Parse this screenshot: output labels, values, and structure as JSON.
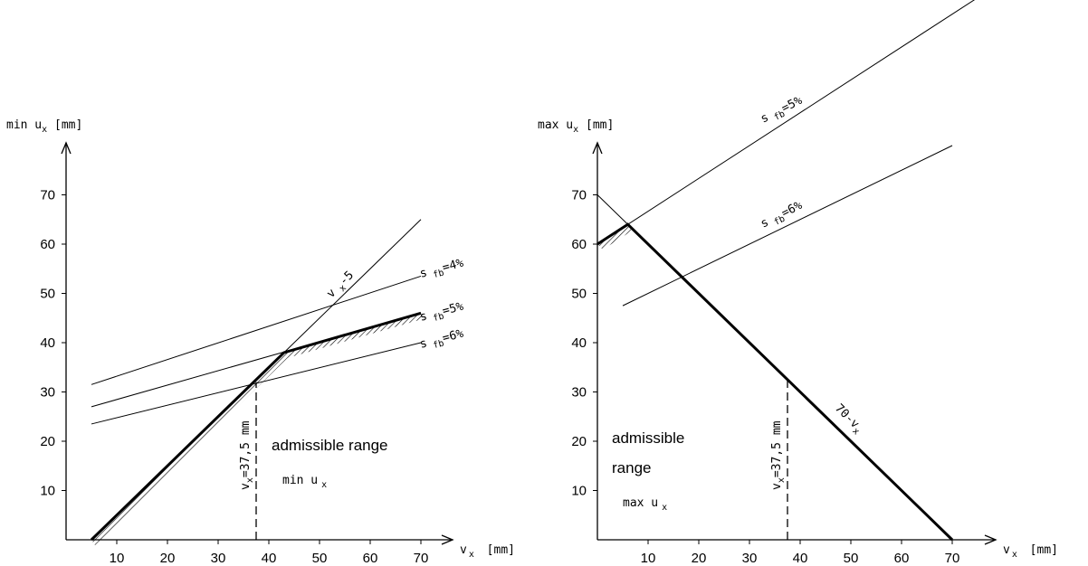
{
  "chart_data": [
    {
      "type": "line",
      "ylabel_main": "min u",
      "ylabel_sub": "x",
      "ylabel_unit": "[mm]",
      "xlabel_main": "v",
      "xlabel_sub": "x",
      "xlabel_unit": "[mm]",
      "xlim": [
        0,
        75
      ],
      "ylim": [
        0,
        80
      ],
      "x_ticks": [
        10,
        20,
        30,
        40,
        50,
        60,
        70
      ],
      "y_ticks": [
        10,
        20,
        30,
        40,
        50,
        60,
        70
      ],
      "series": [
        {
          "label_main": "s",
          "label_sub": "fb",
          "label_eq": "=4%",
          "points": [
            [
              5,
              31.5
            ],
            [
              70,
              53.5
            ]
          ]
        },
        {
          "label_main": "s",
          "label_sub": "fb",
          "label_eq": "=5%",
          "points": [
            [
              5,
              27
            ],
            [
              70,
              46
            ]
          ]
        },
        {
          "label_main": "s",
          "label_sub": "fb",
          "label_eq": "=6%",
          "points": [
            [
              5,
              23.5
            ],
            [
              70,
              40
            ]
          ]
        },
        {
          "label_main": "v",
          "label_sub": "x",
          "label_eq": "-5",
          "points": [
            [
              5,
              0
            ],
            [
              70,
              65
            ]
          ]
        }
      ],
      "boundary": [
        [
          5,
          0
        ],
        [
          43,
          38
        ],
        [
          70,
          46
        ]
      ],
      "reference_line": {
        "label_main": "v",
        "label_sub": "x",
        "label_eq": "=37,5 mm",
        "x": 37.5,
        "y_top": 32
      },
      "range_text": "admissible range",
      "range_var_main": "min u",
      "range_var_sub": "x"
    },
    {
      "type": "line",
      "ylabel_main": "max u",
      "ylabel_sub": "x",
      "ylabel_unit": "[mm]",
      "xlabel_main": "v",
      "xlabel_sub": "x",
      "xlabel_unit": "[mm]",
      "xlim": [
        0,
        75
      ],
      "ylim": [
        0,
        80
      ],
      "x_ticks": [
        10,
        20,
        30,
        40,
        50,
        60,
        70
      ],
      "y_ticks": [
        10,
        20,
        30,
        40,
        50,
        60,
        70
      ],
      "series": [
        {
          "label_main": "s",
          "label_sub": "fb",
          "label_eq": "=5%",
          "points": [
            [
              0,
              60
            ],
            [
              75,
              110
            ]
          ]
        },
        {
          "label_main": "s",
          "label_sub": "fb",
          "label_eq": "=6%",
          "points": [
            [
              5,
              47.5
            ],
            [
              70,
              80
            ]
          ]
        },
        {
          "label_main": "70-v",
          "label_sub": "x",
          "label_eq": "",
          "points": [
            [
              0,
              70
            ],
            [
              70,
              0
            ]
          ]
        }
      ],
      "boundary": [
        [
          0,
          60
        ],
        [
          6,
          64
        ],
        [
          70,
          0
        ]
      ],
      "reference_line": {
        "label_main": "v",
        "label_sub": "x",
        "label_eq": "=37,5 mm",
        "x": 37.5,
        "y_top": 33
      },
      "range_text_line1": "admissible",
      "range_text_line2": "range",
      "range_var_main": "max u",
      "range_var_sub": "x"
    }
  ]
}
